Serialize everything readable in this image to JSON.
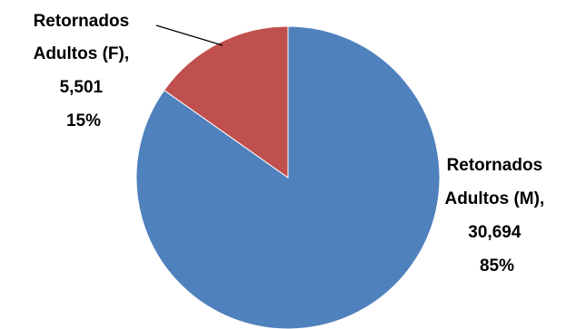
{
  "chart_data": {
    "type": "pie",
    "title": "",
    "categories": [
      "Retornados Adultos (F)",
      "Retornados Adultos (M)"
    ],
    "values": [
      5501,
      30694
    ],
    "percentages": [
      15,
      85
    ],
    "colors": [
      "#C0504D",
      "#4F81BD"
    ],
    "labels": [
      {
        "lines": [
          "Retornados",
          "Adultos (F),",
          "5,501",
          "15%"
        ]
      },
      {
        "lines": [
          "Retornados",
          "Adultos (M),",
          "30,694",
          "85%"
        ]
      }
    ],
    "legend": "none",
    "start_angle": "12 o'clock, clockwise from the larger slice"
  }
}
